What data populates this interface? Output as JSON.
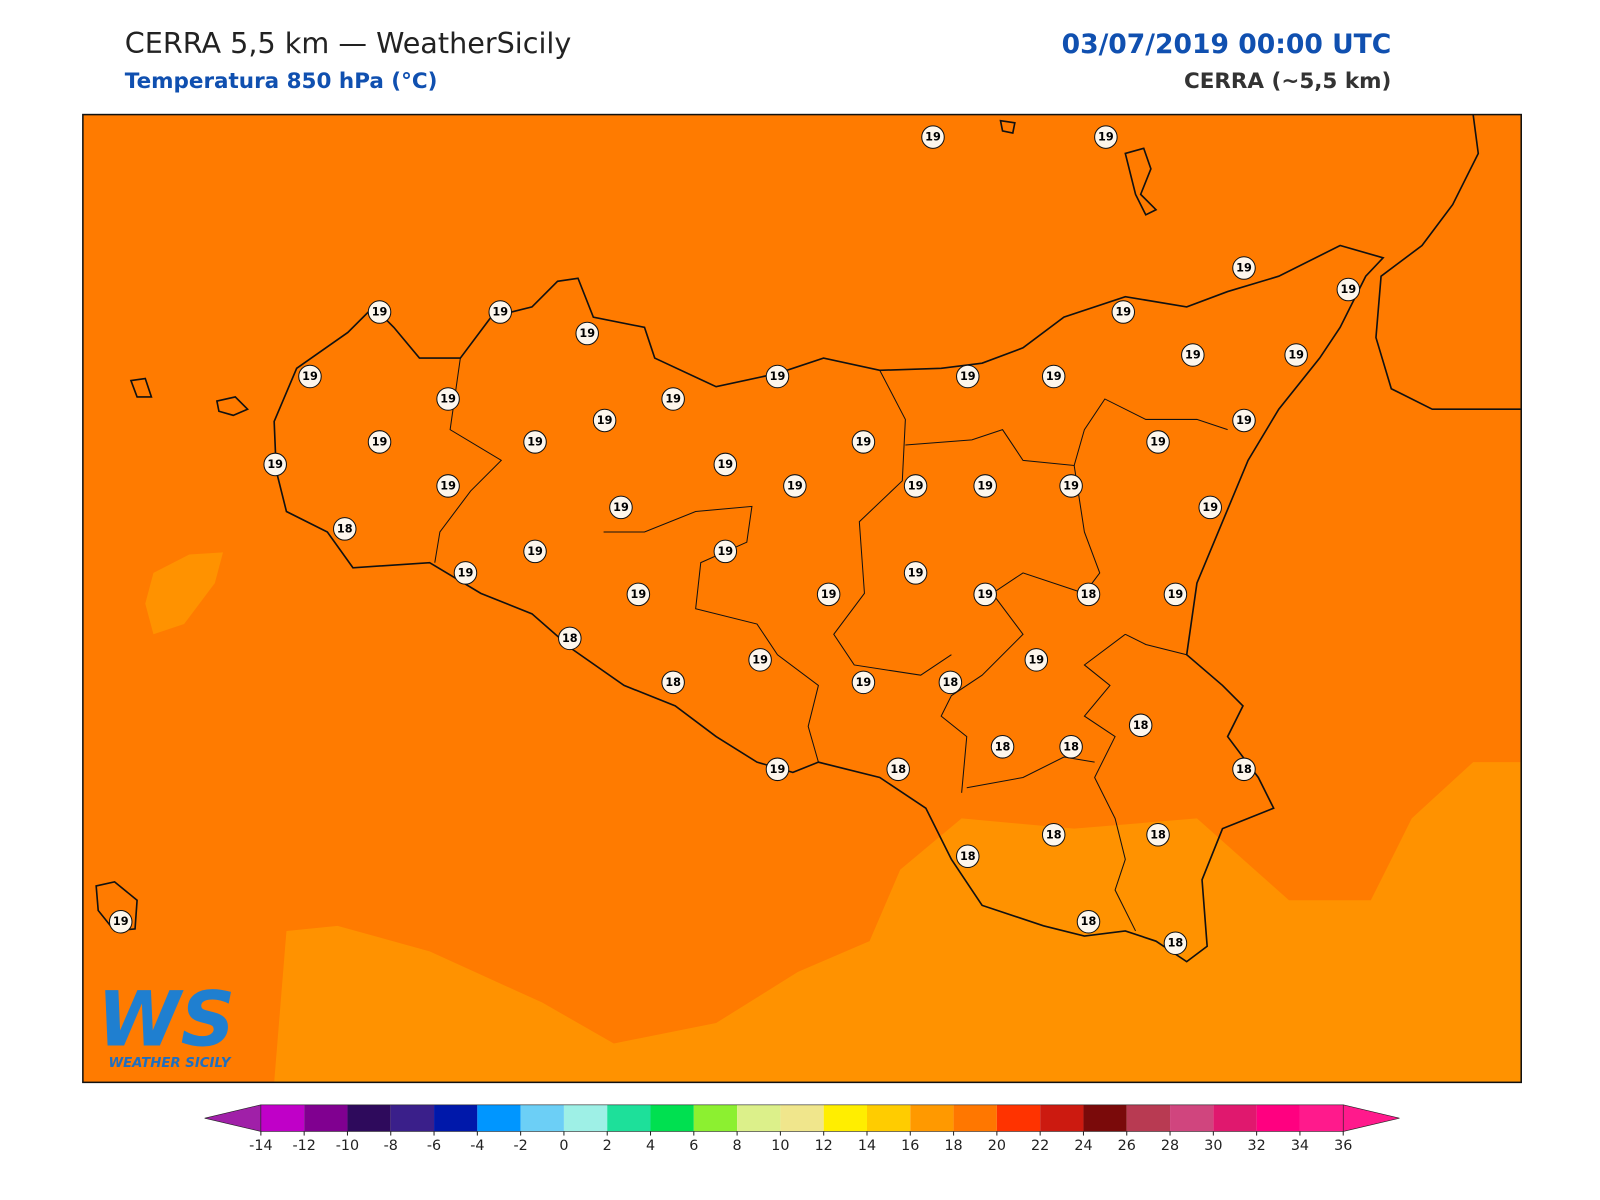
{
  "header": {
    "title": "CERRA 5,5 km — WeatherSicily",
    "subtitle": "Temperatura 850 hPa (°C)",
    "datetime": "03/07/2019 00:00 UTC",
    "model": "CERRA (~5,5 km)"
  },
  "logo": {
    "mark": "WS",
    "name": "WEATHER SICILY"
  },
  "stations": {
    "values": [
      19,
      19,
      19,
      19,
      19,
      19,
      19,
      19,
      19,
      19,
      19,
      19,
      19,
      19,
      19,
      19,
      19,
      19,
      19,
      19,
      19,
      19,
      19,
      19,
      19,
      19,
      19,
      19,
      19,
      19,
      19,
      18,
      19,
      19,
      19,
      19,
      19,
      19,
      19,
      18,
      19,
      18,
      19,
      19,
      18,
      19,
      18,
      18,
      18,
      18,
      19,
      18,
      18,
      18,
      18,
      18,
      18,
      18,
      19
    ]
  },
  "colorbar": {
    "ticks": [
      -14,
      -12,
      -10,
      -8,
      -6,
      -4,
      -2,
      0,
      2,
      4,
      6,
      8,
      10,
      12,
      14,
      16,
      18,
      20,
      22,
      24,
      26,
      28,
      30,
      32,
      34,
      36
    ],
    "under_color": "#a020a8",
    "over_color": "#ff1a8c",
    "colors": [
      "#c000c8",
      "#800090",
      "#2e0a5c",
      "#3a1f8a",
      "#0018aa",
      "#0096ff",
      "#6ccff6",
      "#9ef0e6",
      "#1de09a",
      "#00e050",
      "#8cf030",
      "#dcf08a",
      "#f0e68c",
      "#ffee00",
      "#ffcc00",
      "#ff9900",
      "#ff7700",
      "#ff3300",
      "#cc1a10",
      "#7a0a0a",
      "#b83a52",
      "#d0457e",
      "#e0186e",
      "#ff0080",
      "#ff1a8c"
    ]
  }
}
